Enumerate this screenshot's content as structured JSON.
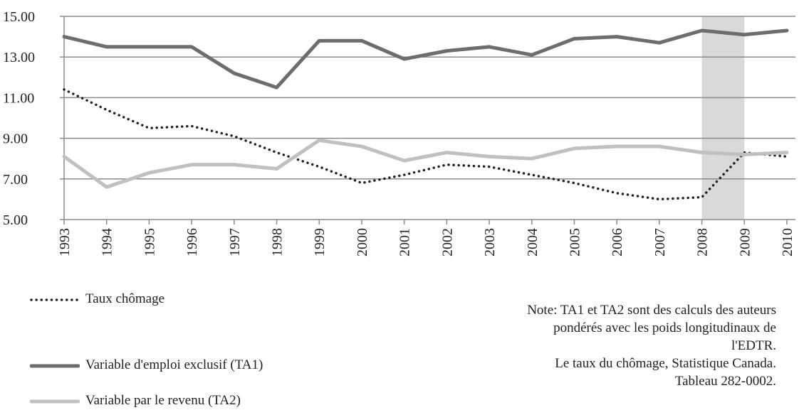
{
  "chart_data": {
    "type": "line",
    "categories": [
      "1993",
      "1994",
      "1995",
      "1996",
      "1997",
      "1998",
      "1999",
      "2000",
      "2001",
      "2002",
      "2003",
      "2004",
      "2005",
      "2006",
      "2007",
      "2008",
      "2009",
      "2010"
    ],
    "series": [
      {
        "name": "Taux chômage",
        "color": "#222222",
        "dash": "dotted",
        "values": [
          11.4,
          10.4,
          9.5,
          9.6,
          9.1,
          8.3,
          7.6,
          6.8,
          7.2,
          7.7,
          7.6,
          7.2,
          6.8,
          6.3,
          6.0,
          6.1,
          8.3,
          8.1
        ]
      },
      {
        "name": "Variable d'emploi exclusif (TA1)",
        "color": "#6d6d6d",
        "dash": "solid",
        "values": [
          14.0,
          13.5,
          13.5,
          13.5,
          12.2,
          11.5,
          13.8,
          13.8,
          12.9,
          13.3,
          13.5,
          13.1,
          13.9,
          14.0,
          13.7,
          14.3,
          14.1,
          14.3
        ]
      },
      {
        "name": "Variable par le revenu (TA2)",
        "color": "#c0c0c0",
        "dash": "solid",
        "values": [
          8.1,
          6.6,
          7.3,
          7.7,
          7.7,
          7.5,
          8.9,
          8.6,
          7.9,
          8.3,
          8.1,
          8.0,
          8.5,
          8.6,
          8.6,
          8.3,
          8.2,
          8.3
        ]
      }
    ],
    "ylim": [
      5,
      15
    ],
    "yticks": [
      {
        "value": 5,
        "label": "5.00"
      },
      {
        "value": 7,
        "label": "7.00"
      },
      {
        "value": 9,
        "label": "9.00"
      },
      {
        "value": 11,
        "label": "11.00"
      },
      {
        "value": 13,
        "label": "13.00"
      },
      {
        "value": 15,
        "label": "15.00"
      }
    ],
    "grid": true,
    "highlight": [
      "2008",
      "2009"
    ],
    "highlight_color": "#d9d9d9",
    "note": [
      "Note:  TA1 et TA2 sont des calculs des auteurs",
      "pondérés avec les poids longitudinaux de",
      "l'EDTR.",
      "Le taux du chômage, Statistique Canada.",
      "Tableau 282-0002."
    ]
  }
}
